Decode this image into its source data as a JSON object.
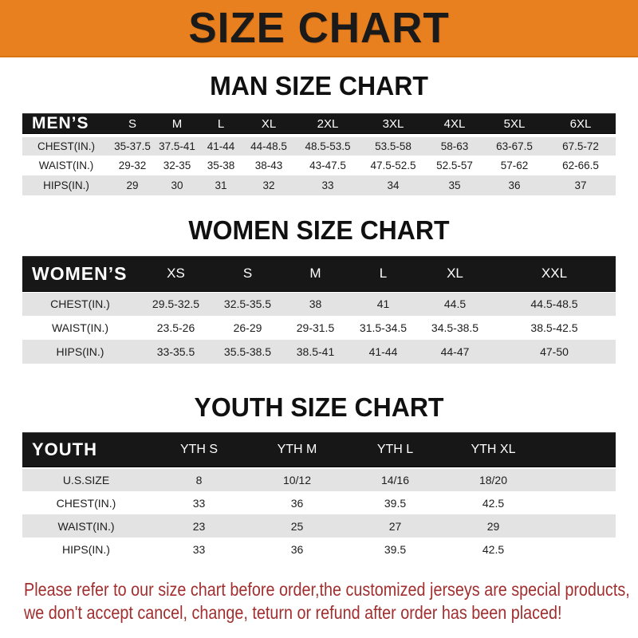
{
  "banner": {
    "title": "SIZE CHART",
    "bg_color": "#e8801f",
    "text_color": "#1a1a1a"
  },
  "sections": [
    {
      "heading": "MAN SIZE CHART",
      "table": {
        "header_label": "MEN’S",
        "columns": [
          "S",
          "M",
          "L",
          "XL",
          "2XL",
          "3XL",
          "4XL",
          "5XL",
          "6XL"
        ],
        "rows": [
          {
            "label": "CHEST(IN.)",
            "values": [
              "35-37.5",
              "37.5-41",
              "41-44",
              "44-48.5",
              "48.5-53.5",
              "53.5-58",
              "58-63",
              "63-67.5",
              "67.5-72"
            ]
          },
          {
            "label": "WAIST(IN.)",
            "values": [
              "29-32",
              "32-35",
              "35-38",
              "38-43",
              "43-47.5",
              "47.5-52.5",
              "52.5-57",
              "57-62",
              "62-66.5"
            ]
          },
          {
            "label": "HIPS(IN.)",
            "values": [
              "29",
              "30",
              "31",
              "32",
              "33",
              "34",
              "35",
              "36",
              "37"
            ]
          }
        ]
      }
    },
    {
      "heading": "WOMEN SIZE CHART",
      "table": {
        "header_label": "WOMEN’S",
        "columns": [
          "XS",
          "S",
          "M",
          "L",
          "XL",
          "XXL"
        ],
        "rows": [
          {
            "label": "CHEST(IN.)",
            "values": [
              "29.5-32.5",
              "32.5-35.5",
              "38",
              "41",
              "44.5",
              "44.5-48.5"
            ]
          },
          {
            "label": "WAIST(IN.)",
            "values": [
              "23.5-26",
              "26-29",
              "29-31.5",
              "31.5-34.5",
              "34.5-38.5",
              "38.5-42.5"
            ]
          },
          {
            "label": "HIPS(IN.)",
            "values": [
              "33-35.5",
              "35.5-38.5",
              "38.5-41",
              "41-44",
              "44-47",
              "47-50"
            ]
          }
        ]
      }
    },
    {
      "heading": "YOUTH SIZE CHART",
      "table": {
        "header_label": "YOUTH",
        "columns": [
          "YTH S",
          "YTH M",
          "YTH L",
          "YTH XL"
        ],
        "rows": [
          {
            "label": "U.S.SIZE",
            "values": [
              "8",
              "10/12",
              "14/16",
              "18/20"
            ]
          },
          {
            "label": "CHEST(IN.)",
            "values": [
              "33",
              "36",
              "39.5",
              "42.5"
            ]
          },
          {
            "label": "WAIST(IN.)",
            "values": [
              "23",
              "25",
              "27",
              "29"
            ]
          },
          {
            "label": "HIPS(IN.)",
            "values": [
              "33",
              "36",
              "39.5",
              "42.5"
            ]
          }
        ]
      }
    }
  ],
  "footer": {
    "lines": [
      "Please refer to our size chart before order,the customized jerseys are special products,",
      "we don't accept cancel, change, teturn or refund after order has been placed!"
    ],
    "text_color": "#a12f2f",
    "row_stripe_color": "#e3e3e3",
    "header_bar_color": "#171717"
  }
}
